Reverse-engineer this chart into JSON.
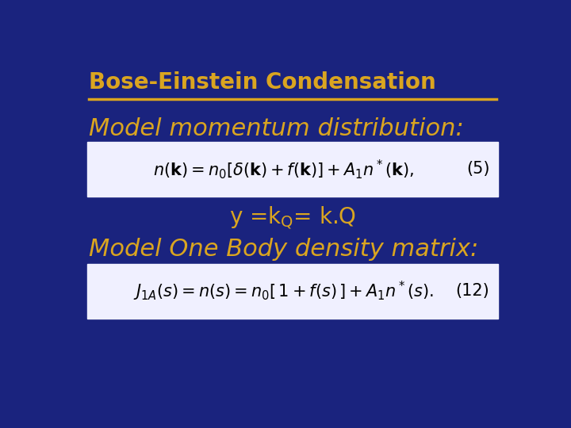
{
  "title": "Bose-Einstein Condensation",
  "title_color": "#DAA520",
  "title_fontsize": 20,
  "bg_color": "#1A237E",
  "line_color": "#DAA520",
  "text_color": "#DAA520",
  "box_bg": "#F0F0FF",
  "label1": "Model momentum distribution:",
  "label2": "Model One Body density matrix:",
  "label_fontsize": 22,
  "mid_fontsize": 20,
  "eq1": "$n(\\mathbf{k}) = n_0[\\delta(\\mathbf{k}) + f(\\mathbf{k})] + A_1 n^*(\\mathbf{k}),$",
  "eq1_num": "(5)",
  "eq2": "$J_{1A}(s) = n(s) = n_0[\\,1 + f(s)\\,] + A_1 n^*(s).$",
  "eq2_num": "(12)",
  "eq_fontsize": 15
}
